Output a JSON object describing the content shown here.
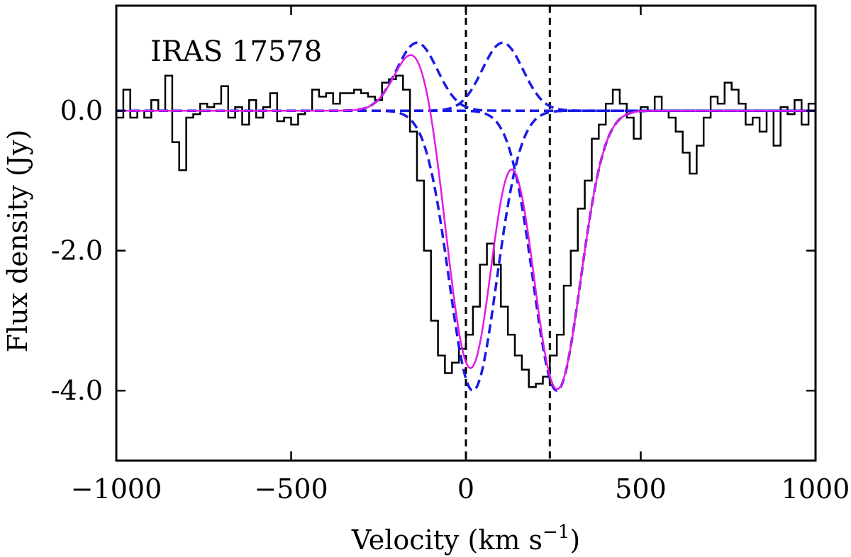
{
  "chart_data": {
    "type": "line",
    "title": "",
    "annotation": "IRAS 17578",
    "xlabel": "Velocity (km s",
    "xlabel_sup": "−1",
    "xlabel_end": ")",
    "ylabel": "Flux density (Jy)",
    "xlim": [
      -1000,
      1000
    ],
    "ylim": [
      -5.0,
      1.5
    ],
    "xticks": [
      -1000,
      -500,
      0,
      500,
      1000
    ],
    "xtick_labels": [
      "−1000",
      "−500",
      "0",
      "500",
      "1000"
    ],
    "yticks": [
      0.0,
      -2.0,
      -4.0
    ],
    "ytick_labels": [
      "0.0",
      "-2.0",
      "-4.0"
    ],
    "grid": false,
    "vertical_reference_lines": [
      0,
      240
    ],
    "colors": {
      "spectrum": "#000000",
      "components": "#1a1ae6",
      "total_fit": "#e619e6",
      "reference_lines": "#000000"
    },
    "series": [
      {
        "name": "Observed spectrum",
        "style": "step",
        "x": [
          -1000,
          -980,
          -960,
          -940,
          -920,
          -900,
          -880,
          -860,
          -840,
          -820,
          -800,
          -780,
          -760,
          -740,
          -720,
          -700,
          -680,
          -660,
          -640,
          -620,
          -600,
          -580,
          -560,
          -540,
          -520,
          -500,
          -480,
          -460,
          -440,
          -420,
          -400,
          -380,
          -360,
          -340,
          -320,
          -300,
          -280,
          -260,
          -240,
          -220,
          -200,
          -180,
          -160,
          -140,
          -120,
          -100,
          -80,
          -60,
          -40,
          -20,
          0,
          20,
          40,
          60,
          80,
          100,
          120,
          140,
          160,
          180,
          200,
          220,
          240,
          260,
          280,
          300,
          320,
          340,
          360,
          380,
          400,
          420,
          440,
          460,
          480,
          500,
          520,
          540,
          560,
          580,
          600,
          620,
          640,
          660,
          680,
          700,
          720,
          740,
          760,
          780,
          800,
          820,
          840,
          860,
          880,
          900,
          920,
          940,
          960,
          980
        ],
        "y": [
          -0.1,
          0.3,
          -0.1,
          0.0,
          -0.1,
          0.15,
          0.0,
          0.5,
          -0.45,
          -0.85,
          -0.1,
          -0.05,
          0.1,
          0.05,
          0.1,
          0.35,
          -0.1,
          0.05,
          -0.2,
          0.15,
          -0.1,
          0.05,
          0.25,
          -0.15,
          -0.1,
          -0.2,
          -0.05,
          0.0,
          0.3,
          0.2,
          0.25,
          0.1,
          0.25,
          0.25,
          0.3,
          0.25,
          0.2,
          0.15,
          0.4,
          0.45,
          0.5,
          0.3,
          -0.3,
          -1.0,
          -2.0,
          -3.0,
          -3.5,
          -3.75,
          -3.6,
          -3.4,
          -3.2,
          -2.8,
          -2.2,
          -1.9,
          -2.2,
          -2.8,
          -3.2,
          -3.5,
          -3.7,
          -3.95,
          -3.9,
          -3.8,
          -3.5,
          -3.2,
          -2.5,
          -2.0,
          -1.4,
          -1.0,
          -0.4,
          -0.2,
          0.1,
          0.3,
          0.1,
          -0.1,
          -0.4,
          0.05,
          0.0,
          0.2,
          0.0,
          -0.1,
          -0.3,
          -0.6,
          -0.9,
          -0.5,
          -0.1,
          0.2,
          0.1,
          0.4,
          0.3,
          0.1,
          -0.2,
          -0.1,
          -0.3,
          0.0,
          -0.5,
          0.05,
          -0.05,
          0.15,
          -0.2,
          0.1
        ]
      },
      {
        "name": "Emission component 1",
        "style": "dashed",
        "amplitude": 0.97,
        "center": -140,
        "sigma": 58
      },
      {
        "name": "Emission component 2",
        "style": "dashed",
        "amplitude": 0.97,
        "center": 105,
        "sigma": 58
      },
      {
        "name": "Absorption component 1",
        "style": "dashed",
        "amplitude": -4.0,
        "center": 20,
        "sigma": 68
      },
      {
        "name": "Absorption component 2",
        "style": "dashed",
        "amplitude": -4.0,
        "center": 260,
        "sigma": 68
      },
      {
        "name": "Total fit",
        "style": "solid",
        "sum_of_components": true
      }
    ]
  }
}
